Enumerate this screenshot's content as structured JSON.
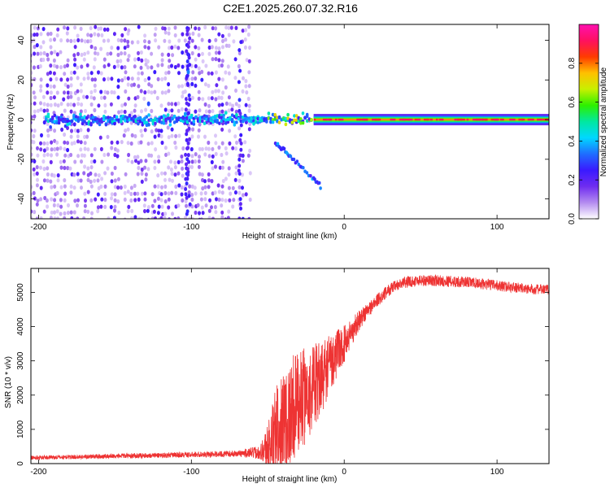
{
  "figure": {
    "title": "C2E1.2025.260.07.32.R16"
  },
  "chart_data": [
    {
      "type": "heatmap",
      "title": "C2E1.2025.260.07.32.R16",
      "xlabel": "Height of straight line (km)",
      "ylabel": "Frequency (Hz)",
      "xlim": [
        -205,
        134
      ],
      "ylim": [
        -50,
        48
      ],
      "xticks": [
        -200,
        -100,
        0,
        100
      ],
      "xtick_labels": [
        "-200",
        "-100",
        "0",
        "100"
      ],
      "yticks": [
        -40,
        -20,
        0,
        20,
        40
      ],
      "ytick_labels": [
        "-40",
        "-20",
        "0",
        "20",
        "40"
      ],
      "colorbar": {
        "label": "Normalized spectral amplitude",
        "range": [
          0,
          1
        ],
        "ticks": [
          0.0,
          0.2,
          0.4,
          0.6,
          0.8
        ],
        "tick_labels": [
          "0.0",
          "0.2",
          "0.4",
          "0.6",
          "0.8"
        ],
        "colors": [
          "#ffffff",
          "#b48cf0",
          "#6f2cf0",
          "#3a1aff",
          "#1f6dff",
          "#00d8ff",
          "#00e8a0",
          "#2cf000",
          "#c8f000",
          "#ffc000",
          "#ff3c00",
          "#ff1060",
          "#ff10b0"
        ]
      },
      "features": {
        "carrier_line": {
          "frequency_hz": 0,
          "x_from": -20,
          "x_to": 134
        },
        "scatter_region_x": [
          -205,
          -62
        ],
        "descending_arc": [
          {
            "x": -45,
            "f": -12
          },
          {
            "x": -40,
            "f": -15
          },
          {
            "x": -35,
            "f": -19
          },
          {
            "x": -28,
            "f": -24
          },
          {
            "x": -20,
            "f": -30
          },
          {
            "x": -15,
            "f": -34
          }
        ]
      }
    },
    {
      "type": "line",
      "xlabel": "Height of straight line (km)",
      "ylabel": "SNR (10 * v/v)",
      "xlim": [
        -205,
        134
      ],
      "ylim": [
        0,
        5700
      ],
      "xticks": [
        -200,
        -100,
        0,
        100
      ],
      "xtick_labels": [
        "-200",
        "-100",
        "0",
        "100"
      ],
      "yticks": [
        0,
        1000,
        2000,
        3000,
        4000,
        5000
      ],
      "ytick_labels": [
        "0",
        "1000",
        "2000",
        "3000",
        "4000",
        "5000"
      ],
      "series": [
        {
          "name": "SNR",
          "color": "#ee3333",
          "envelope": {
            "x": [
              -205,
              -150,
              -100,
              -70,
              -55,
              -50,
              -45,
              -40,
              -35,
              -30,
              -25,
              -20,
              -15,
              -10,
              -5,
              0,
              10,
              20,
              30,
              40,
              50,
              60,
              70,
              80,
              90,
              100,
              110,
              120,
              134
            ],
            "mean": [
              170,
              220,
              260,
              290,
              330,
              500,
              900,
              1300,
              1500,
              1800,
              2000,
              2200,
              2500,
              2900,
              3200,
              3500,
              4200,
              4700,
              5100,
              5300,
              5350,
              5350,
              5320,
              5300,
              5250,
              5200,
              5150,
              5100,
              5080
            ],
            "spread": [
              60,
              70,
              80,
              90,
              200,
              700,
              1300,
              1500,
              1600,
              1500,
              1400,
              1300,
              1100,
              900,
              700,
              550,
              300,
              200,
              180,
              170,
              170,
              170,
              170,
              160,
              160,
              160,
              150,
              150,
              150
            ]
          }
        }
      ]
    }
  ]
}
